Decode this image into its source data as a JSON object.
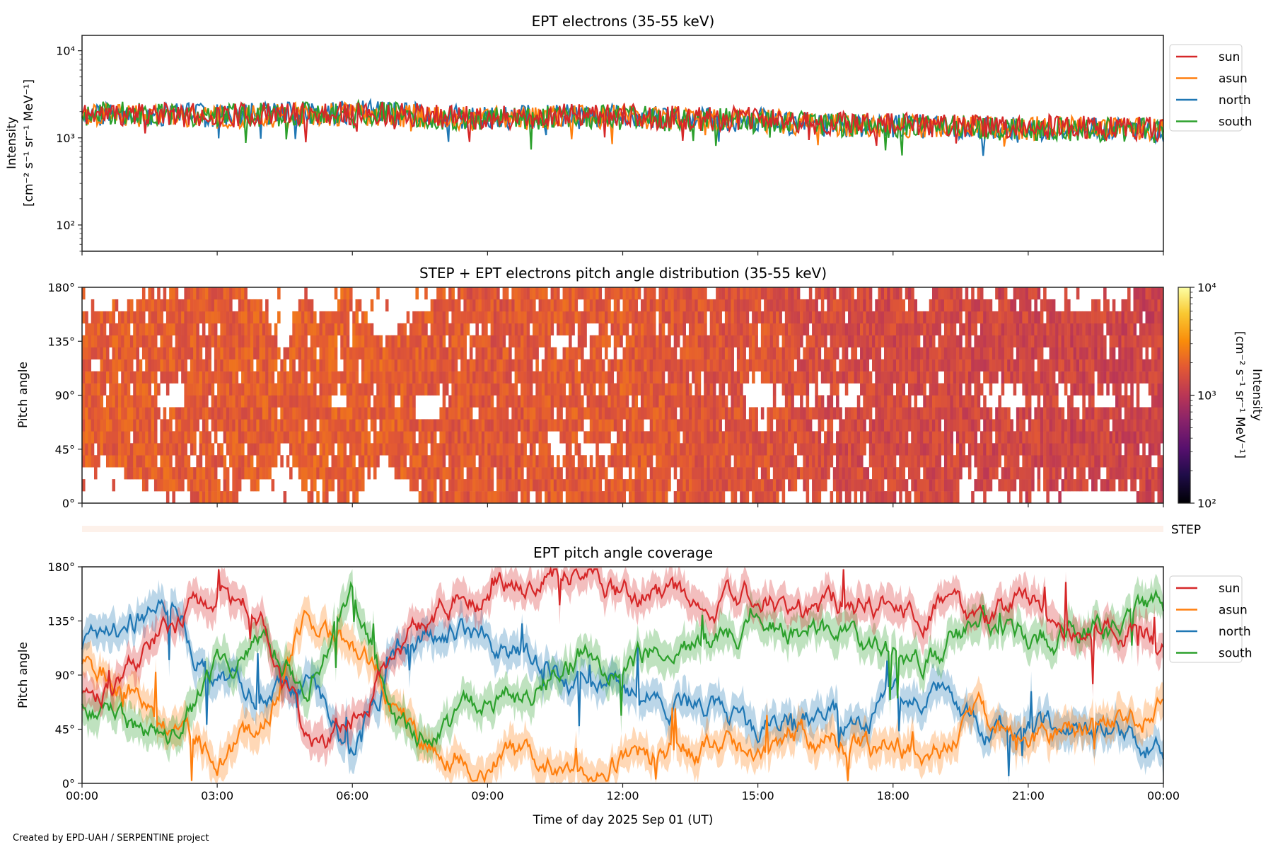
{
  "footer": {
    "credit": "Created by EPD-UAH / SERPENTINE project"
  },
  "chart_data": [
    {
      "type": "line",
      "title": "EPT electrons (35-55 keV)",
      "ylabel": "Intensity",
      "yunits": "[cm⁻² s⁻¹ sr⁻¹ MeV⁻¹]",
      "yscale": "log",
      "ylim": [
        50,
        15000
      ],
      "yticks": [
        {
          "value": 10000,
          "label": "10⁴"
        },
        {
          "value": 1000,
          "label": "10³"
        },
        {
          "value": 100,
          "label": "10²"
        }
      ],
      "xlim_hours": [
        0,
        24
      ],
      "x_hours": [
        0,
        1,
        2,
        3,
        4,
        5,
        6,
        7,
        8,
        9,
        10,
        11,
        12,
        13,
        14,
        15,
        16,
        17,
        18,
        19,
        20,
        21,
        22,
        23,
        24
      ],
      "legend": "outside-top-right",
      "series": [
        {
          "name": "sun",
          "color": "#d62728",
          "values": [
            1900,
            1850,
            1850,
            1800,
            1850,
            1900,
            1950,
            1900,
            1750,
            1700,
            1750,
            1800,
            1800,
            1700,
            1650,
            1650,
            1500,
            1450,
            1400,
            1400,
            1350,
            1350,
            1300,
            1300,
            1250
          ]
        },
        {
          "name": "asun",
          "color": "#ff7f0e",
          "values": [
            1800,
            1800,
            1800,
            1750,
            1800,
            1850,
            1900,
            1850,
            1700,
            1650,
            1700,
            1750,
            1750,
            1650,
            1600,
            1600,
            1450,
            1400,
            1400,
            1350,
            1300,
            1300,
            1300,
            1250,
            1250
          ]
        },
        {
          "name": "north",
          "color": "#1f77b4",
          "values": [
            1850,
            1850,
            1850,
            1800,
            1850,
            1900,
            2000,
            1900,
            1750,
            1700,
            1750,
            1750,
            1750,
            1650,
            1600,
            1600,
            1450,
            1400,
            1350,
            1350,
            1300,
            1300,
            1250,
            1250,
            1200
          ]
        },
        {
          "name": "south",
          "color": "#2ca02c",
          "values": [
            1900,
            1900,
            1900,
            1850,
            1850,
            1900,
            1950,
            1850,
            1700,
            1650,
            1700,
            1750,
            1700,
            1650,
            1600,
            1550,
            1450,
            1400,
            1350,
            1350,
            1300,
            1250,
            1250,
            1250,
            1200
          ]
        }
      ]
    },
    {
      "type": "heatmap",
      "title": "STEP + EPT electrons pitch angle distribution (35-55 keV)",
      "ylabel": "Pitch angle",
      "ylim": [
        0,
        180
      ],
      "yticks": [
        "0°",
        "45°",
        "90°",
        "135°",
        "180°"
      ],
      "colorbar": {
        "label": "Intensity",
        "units": "[cm⁻² s⁻¹ sr⁻¹ MeV⁻¹]",
        "scale": "log",
        "range": [
          100,
          10000
        ],
        "ticks": [
          "10²",
          "10³",
          "10⁴"
        ],
        "colormap": "inferno"
      },
      "step_label": "STEP"
    },
    {
      "type": "line",
      "title": "EPT pitch angle coverage",
      "ylabel": "Pitch angle",
      "xlabel": "Time of day 2025 Sep 01 (UT)",
      "ylim": [
        0,
        180
      ],
      "yticks": [
        {
          "value": 0,
          "label": "0°"
        },
        {
          "value": 45,
          "label": "45°"
        },
        {
          "value": 90,
          "label": "90°"
        },
        {
          "value": 135,
          "label": "135°"
        },
        {
          "value": 180,
          "label": "180°"
        }
      ],
      "xticks": [
        "00:00",
        "03:00",
        "06:00",
        "09:00",
        "12:00",
        "15:00",
        "18:00",
        "21:00",
        "00:00"
      ],
      "x_hours": [
        0,
        1,
        2,
        3,
        4,
        5,
        6,
        7,
        8,
        9,
        10,
        11,
        12,
        13,
        14,
        15,
        16,
        17,
        18,
        19,
        20,
        21,
        22,
        23,
        24
      ],
      "legend": "outside-top-right",
      "series": [
        {
          "name": "sun",
          "color": "#d62728",
          "values": [
            80,
            95,
            130,
            155,
            140,
            30,
            60,
            120,
            150,
            160,
            165,
            170,
            160,
            155,
            150,
            155,
            140,
            150,
            150,
            150,
            130,
            150,
            130,
            130,
            120
          ]
        },
        {
          "name": "asun",
          "color": "#ff7f0e",
          "values": [
            100,
            85,
            50,
            25,
            40,
            150,
            120,
            60,
            30,
            20,
            15,
            15,
            20,
            25,
            30,
            25,
            40,
            30,
            30,
            30,
            50,
            30,
            50,
            50,
            60
          ]
        },
        {
          "name": "north",
          "color": "#1f77b4",
          "values": [
            115,
            130,
            150,
            80,
            70,
            90,
            20,
            110,
            130,
            120,
            100,
            80,
            90,
            60,
            70,
            40,
            50,
            55,
            65,
            80,
            50,
            45,
            50,
            45,
            35
          ]
        },
        {
          "name": "south",
          "color": "#2ca02c",
          "values": [
            70,
            50,
            30,
            100,
            110,
            90,
            160,
            50,
            40,
            60,
            80,
            110,
            100,
            120,
            110,
            130,
            130,
            120,
            110,
            100,
            140,
            120,
            130,
            130,
            145
          ]
        }
      ]
    }
  ]
}
